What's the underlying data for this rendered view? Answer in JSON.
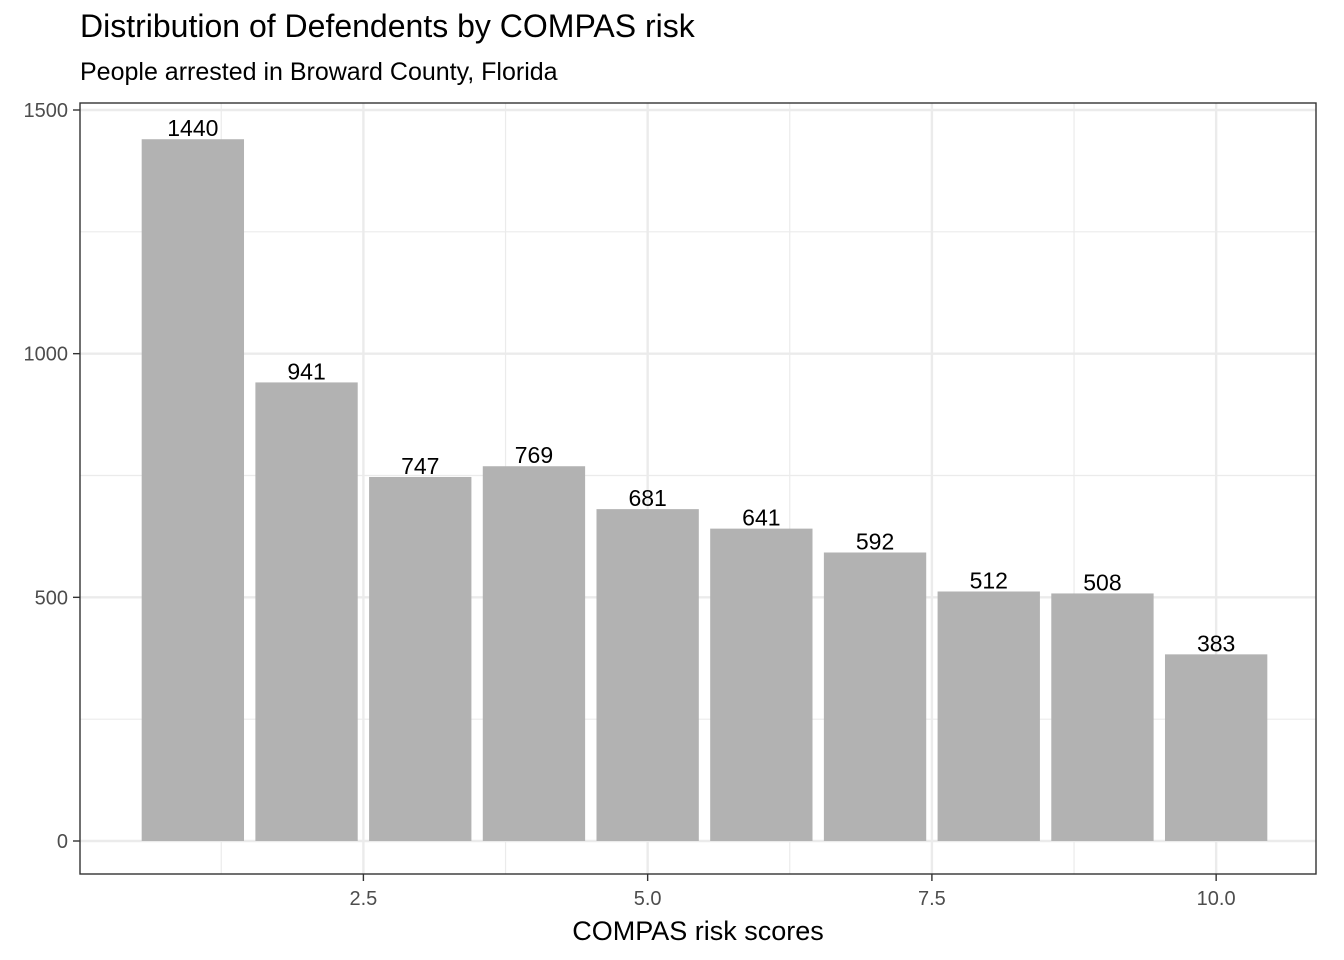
{
  "chart_data": {
    "type": "bar",
    "title": "Distribution of Defendents by COMPAS risk",
    "subtitle": "People arrested in Broward County, Florida",
    "xlabel": "COMPAS risk scores",
    "ylabel": "",
    "x": [
      1,
      2,
      3,
      4,
      5,
      6,
      7,
      8,
      9,
      10
    ],
    "values": [
      1440,
      941,
      747,
      769,
      681,
      641,
      592,
      512,
      508,
      383
    ],
    "data_labels": [
      "1440",
      "941",
      "747",
      "769",
      "681",
      "641",
      "592",
      "512",
      "508",
      "383"
    ],
    "xlim": [
      0.5,
      10.5
    ],
    "ylim": [
      0,
      1500
    ],
    "x_ticks": [
      2.5,
      5.0,
      7.5,
      10.0
    ],
    "x_tick_labels": [
      "2.5",
      "5.0",
      "7.5",
      "10.0"
    ],
    "y_ticks": [
      0,
      500,
      1000,
      1500
    ],
    "y_tick_labels": [
      "0",
      "500",
      "1000",
      "1500"
    ],
    "grid": true,
    "legend": "none",
    "bar_color": "#b2b2b2",
    "grid_color": "#ebebeb",
    "panel_border_color": "#333333"
  }
}
